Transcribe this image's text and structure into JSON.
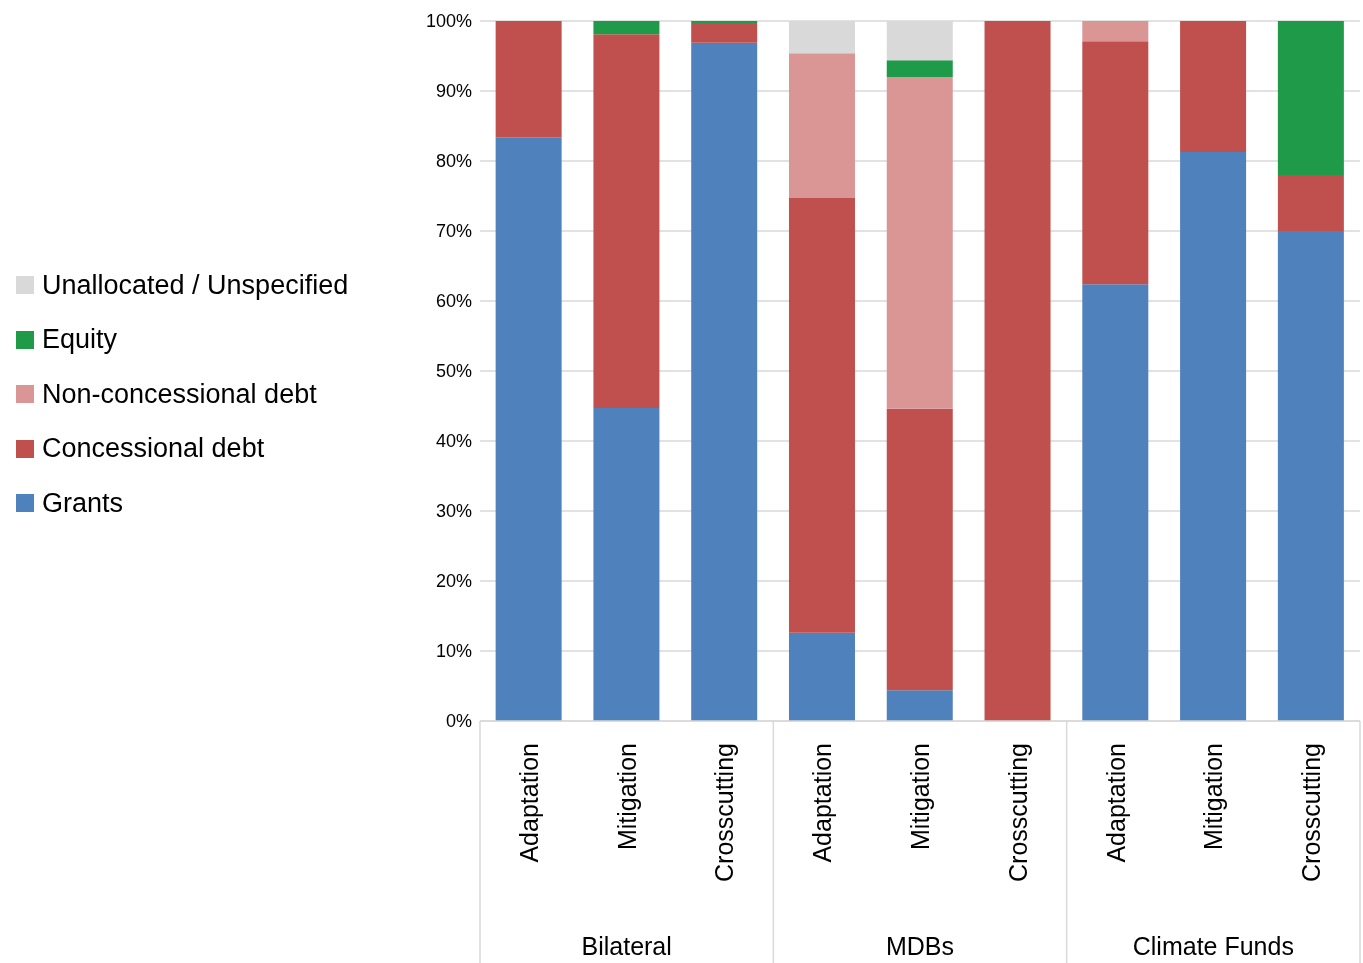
{
  "chart_data": {
    "type": "bar",
    "stacked": true,
    "categories": [
      "Adaptation",
      "Mitigation",
      "Crosscutting",
      "Adaptation",
      "Mitigation",
      "Crosscutting",
      "Adaptation",
      "Mitigation",
      "Crosscutting"
    ],
    "series": [
      {
        "name": "Grants",
        "color": "#4f81bd",
        "values": [
          83.4,
          44.7,
          96.9,
          12.6,
          4.4,
          0,
          62.4,
          81.3,
          70
        ]
      },
      {
        "name": "Concessional debt",
        "color": "#c0504d",
        "values": [
          16.6,
          53.4,
          2.8,
          62.1,
          40.2,
          100,
          34.7,
          18.7,
          8
        ]
      },
      {
        "name": "Non-concessional debt",
        "color": "#d99694",
        "values": [
          0,
          0,
          0,
          20.7,
          47.4,
          0,
          2.9,
          0,
          0
        ]
      },
      {
        "name": "Equity",
        "color": "#1f9a48",
        "values": [
          0,
          1.9,
          0.3,
          0,
          2.4,
          0,
          0,
          0,
          22
        ]
      },
      {
        "name": "Unallocated / Unspecified",
        "color": "#d9d9d9",
        "values": [
          0,
          0,
          0,
          4.6,
          5.6,
          0,
          0,
          0,
          0
        ]
      }
    ],
    "annotations": [
      "Bilateral",
      "MDBs",
      "Climate Funds"
    ],
    "ylim": [
      0,
      100
    ],
    "yticks": [
      {
        "value": 0,
        "label": "0%"
      },
      {
        "value": 10,
        "label": "10%"
      },
      {
        "value": 20,
        "label": "20%"
      },
      {
        "value": 30,
        "label": "30%"
      },
      {
        "value": 40,
        "label": "40%"
      },
      {
        "value": 50,
        "label": "50%"
      },
      {
        "value": 60,
        "label": "60%"
      },
      {
        "value": 70,
        "label": "70%"
      },
      {
        "value": 80,
        "label": "80%"
      },
      {
        "value": 90,
        "label": "90%"
      },
      {
        "value": 100,
        "label": "100%"
      }
    ],
    "grid": "y",
    "legend": "left"
  }
}
